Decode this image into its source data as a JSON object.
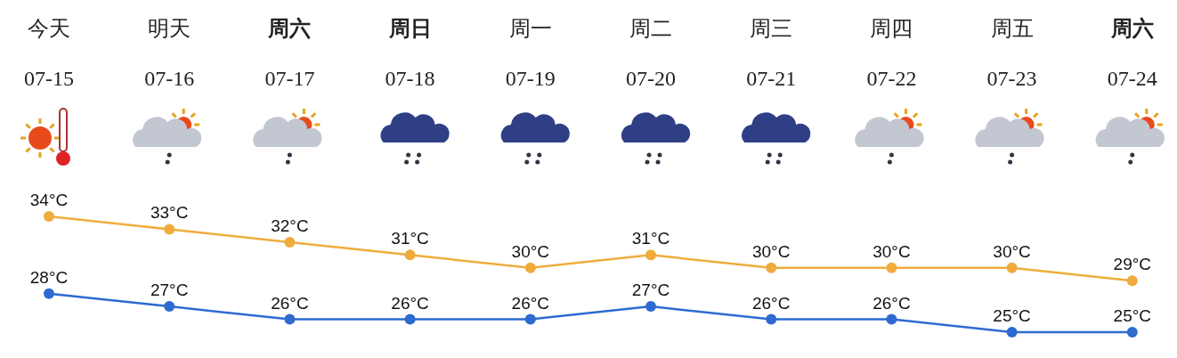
{
  "chart_data": {
    "type": "line",
    "categories": [
      "今天\n07-15",
      "明天\n07-16",
      "**周六**\n07-17",
      "**周日**\n07-18",
      "周一\n07-19",
      "周二\n07-20",
      "周三\n07-21",
      "周四\n07-22",
      "周五\n07-23",
      "**周六**\n07-24"
    ],
    "series": [
      {
        "color": "#efac3c",
        "values": [
          34,
          33,
          32,
          31,
          30,
          31,
          30,
          30,
          30,
          29
        ],
        "value_labels": [
          "34°C",
          "33°C",
          "32°C",
          "31°C",
          "30°C",
          "31°C",
          "30°C",
          "30°C",
          "30°C",
          "29°C"
        ]
      },
      {
        "color": "#2d6bd0",
        "values": [
          28,
          27,
          26,
          26,
          26,
          27,
          26,
          26,
          25,
          25
        ],
        "value_labels": [
          "28°C",
          "27°C",
          "26°C",
          "26°C",
          "26°C",
          "27°C",
          "26°C",
          "26°C",
          "25°C",
          "25°C"
        ]
      }
    ],
    "marker": "circle"
  }
}
